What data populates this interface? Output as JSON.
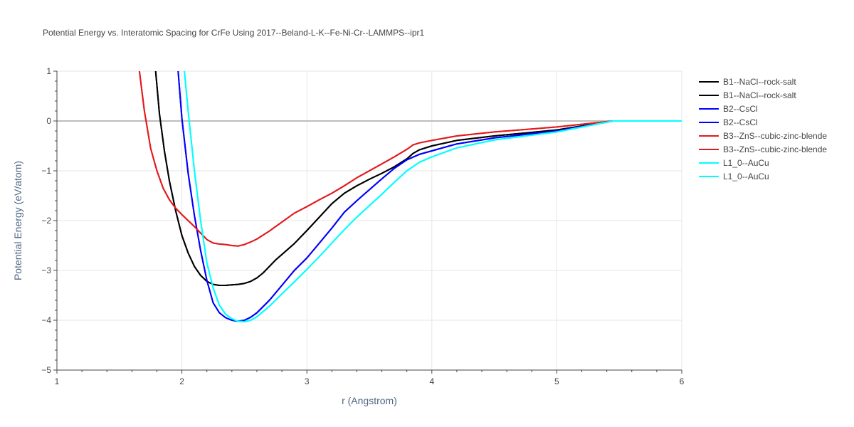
{
  "chart_data": {
    "type": "line",
    "title": "Potential Energy vs. Interatomic Spacing for CrFe Using 2017--Beland-L-K--Fe-Ni-Cr--LAMMPS--ipr1",
    "xlabel": "r (Angstrom)",
    "ylabel": "Potential Energy (eV/atom)",
    "xlim": [
      1,
      6
    ],
    "ylim": [
      -5,
      1
    ],
    "xticks": [
      "1",
      "2",
      "3",
      "4",
      "5",
      "6"
    ],
    "yticks": [
      "1",
      "0",
      "−1",
      "−2",
      "−3",
      "−4",
      "−5"
    ],
    "grid": true,
    "legend_position": "right",
    "series": [
      {
        "name": "B1--NaCl--rock-salt",
        "color": "#000000",
        "x": [
          1.79,
          1.82,
          1.86,
          1.9,
          1.95,
          2.0,
          2.05,
          2.1,
          2.15,
          2.2,
          2.25,
          2.3,
          2.35,
          2.4,
          2.45,
          2.5,
          2.55,
          2.6,
          2.65,
          2.7,
          2.75,
          2.8,
          2.9,
          3.0,
          3.1,
          3.2,
          3.3,
          3.4,
          3.5,
          3.6,
          3.7,
          3.8,
          3.85,
          3.9,
          4.0,
          4.2,
          4.5,
          5.0,
          5.45,
          5.6,
          6.0
        ],
        "y": [
          1.0,
          0.15,
          -0.6,
          -1.2,
          -1.8,
          -2.3,
          -2.65,
          -2.92,
          -3.1,
          -3.22,
          -3.28,
          -3.3,
          -3.3,
          -3.29,
          -3.28,
          -3.26,
          -3.22,
          -3.15,
          -3.05,
          -2.92,
          -2.79,
          -2.68,
          -2.46,
          -2.2,
          -1.93,
          -1.66,
          -1.45,
          -1.3,
          -1.17,
          -1.05,
          -0.92,
          -0.76,
          -0.65,
          -0.58,
          -0.5,
          -0.39,
          -0.3,
          -0.18,
          0.0,
          0.0,
          0.0
        ]
      },
      {
        "name": "B1--NaCl--rock-salt",
        "color": "#000000",
        "x": [
          1.79,
          1.82,
          1.86,
          1.9,
          1.95,
          2.0,
          2.05,
          2.1,
          2.15,
          2.2,
          2.25,
          2.3,
          2.35,
          2.4,
          2.45,
          2.5,
          2.55,
          2.6,
          2.65,
          2.7,
          2.75,
          2.8,
          2.9,
          3.0,
          3.1,
          3.2,
          3.3,
          3.4,
          3.5,
          3.6,
          3.7,
          3.8,
          3.85,
          3.9,
          4.0,
          4.2,
          4.5,
          5.0,
          5.45,
          5.6,
          6.0
        ],
        "y": [
          1.0,
          0.15,
          -0.6,
          -1.2,
          -1.8,
          -2.3,
          -2.65,
          -2.92,
          -3.1,
          -3.22,
          -3.28,
          -3.3,
          -3.3,
          -3.29,
          -3.28,
          -3.26,
          -3.22,
          -3.15,
          -3.05,
          -2.92,
          -2.79,
          -2.68,
          -2.46,
          -2.2,
          -1.93,
          -1.66,
          -1.45,
          -1.3,
          -1.17,
          -1.05,
          -0.92,
          -0.76,
          -0.65,
          -0.58,
          -0.5,
          -0.39,
          -0.3,
          -0.18,
          0.0,
          0.0,
          0.0
        ]
      },
      {
        "name": "B2--CsCl",
        "color": "#0000ff",
        "x": [
          1.97,
          2.0,
          2.05,
          2.1,
          2.15,
          2.2,
          2.25,
          2.3,
          2.35,
          2.4,
          2.45,
          2.5,
          2.55,
          2.6,
          2.7,
          2.8,
          2.9,
          3.0,
          3.1,
          3.2,
          3.3,
          3.4,
          3.5,
          3.6,
          3.7,
          3.8,
          3.9,
          4.0,
          4.2,
          4.5,
          5.0,
          5.45,
          5.6,
          6.0
        ],
        "y": [
          1.0,
          0.05,
          -1.05,
          -1.9,
          -2.6,
          -3.2,
          -3.65,
          -3.85,
          -3.95,
          -4.0,
          -4.02,
          -4.0,
          -3.94,
          -3.85,
          -3.6,
          -3.3,
          -3.0,
          -2.75,
          -2.45,
          -2.15,
          -1.83,
          -1.6,
          -1.38,
          -1.16,
          -0.95,
          -0.78,
          -0.67,
          -0.6,
          -0.46,
          -0.34,
          -0.2,
          0.0,
          0.0,
          0.0
        ]
      },
      {
        "name": "B2--CsCl",
        "color": "#0000ff",
        "x": [
          1.97,
          2.0,
          2.05,
          2.1,
          2.15,
          2.2,
          2.25,
          2.3,
          2.35,
          2.4,
          2.45,
          2.5,
          2.55,
          2.6,
          2.7,
          2.8,
          2.9,
          3.0,
          3.1,
          3.2,
          3.3,
          3.4,
          3.5,
          3.6,
          3.7,
          3.8,
          3.9,
          4.0,
          4.2,
          4.5,
          5.0,
          5.45,
          5.6,
          6.0
        ],
        "y": [
          1.0,
          0.05,
          -1.05,
          -1.9,
          -2.6,
          -3.2,
          -3.65,
          -3.85,
          -3.95,
          -4.0,
          -4.02,
          -4.0,
          -3.94,
          -3.85,
          -3.6,
          -3.3,
          -3.0,
          -2.75,
          -2.45,
          -2.15,
          -1.83,
          -1.6,
          -1.38,
          -1.16,
          -0.95,
          -0.78,
          -0.67,
          -0.6,
          -0.46,
          -0.34,
          -0.2,
          0.0,
          0.0,
          0.0
        ]
      },
      {
        "name": "B3--ZnS--cubic-zinc-blende",
        "color": "#e31a1c",
        "x": [
          1.66,
          1.7,
          1.75,
          1.8,
          1.85,
          1.9,
          1.95,
          2.0,
          2.05,
          2.1,
          2.15,
          2.2,
          2.25,
          2.3,
          2.35,
          2.4,
          2.45,
          2.5,
          2.55,
          2.6,
          2.7,
          2.8,
          2.9,
          3.0,
          3.1,
          3.2,
          3.3,
          3.4,
          3.5,
          3.6,
          3.7,
          3.8,
          3.85,
          3.9,
          4.0,
          4.2,
          4.5,
          5.0,
          5.45,
          5.6,
          6.0
        ],
        "y": [
          1.0,
          0.2,
          -0.55,
          -1.0,
          -1.35,
          -1.58,
          -1.75,
          -1.88,
          -2.0,
          -2.12,
          -2.25,
          -2.38,
          -2.45,
          -2.47,
          -2.48,
          -2.5,
          -2.51,
          -2.48,
          -2.43,
          -2.37,
          -2.21,
          -2.03,
          -1.85,
          -1.72,
          -1.58,
          -1.45,
          -1.3,
          -1.14,
          -1.0,
          -0.86,
          -0.72,
          -0.57,
          -0.48,
          -0.44,
          -0.39,
          -0.3,
          -0.22,
          -0.12,
          0.0,
          0.0,
          0.0
        ]
      },
      {
        "name": "B3--ZnS--cubic-zinc-blende",
        "color": "#e31a1c",
        "x": [
          1.66,
          1.7,
          1.75,
          1.8,
          1.85,
          1.9,
          1.95,
          2.0,
          2.05,
          2.1,
          2.15,
          2.2,
          2.25,
          2.3,
          2.35,
          2.4,
          2.45,
          2.5,
          2.55,
          2.6,
          2.7,
          2.8,
          2.9,
          3.0,
          3.1,
          3.2,
          3.3,
          3.4,
          3.5,
          3.6,
          3.7,
          3.8,
          3.85,
          3.9,
          4.0,
          4.2,
          4.5,
          5.0,
          5.45,
          5.6,
          6.0
        ],
        "y": [
          1.0,
          0.2,
          -0.55,
          -1.0,
          -1.35,
          -1.58,
          -1.75,
          -1.88,
          -2.0,
          -2.12,
          -2.25,
          -2.38,
          -2.45,
          -2.47,
          -2.48,
          -2.5,
          -2.51,
          -2.48,
          -2.43,
          -2.37,
          -2.21,
          -2.03,
          -1.85,
          -1.72,
          -1.58,
          -1.45,
          -1.3,
          -1.14,
          -1.0,
          -0.86,
          -0.72,
          -0.57,
          -0.48,
          -0.44,
          -0.39,
          -0.3,
          -0.22,
          -0.12,
          0.0,
          0.0,
          0.0
        ]
      },
      {
        "name": "L1_0--AuCu",
        "color": "#00ffff",
        "x": [
          2.02,
          2.05,
          2.1,
          2.15,
          2.2,
          2.25,
          2.3,
          2.35,
          2.4,
          2.45,
          2.5,
          2.55,
          2.6,
          2.7,
          2.8,
          2.9,
          3.0,
          3.1,
          3.2,
          3.3,
          3.4,
          3.5,
          3.6,
          3.7,
          3.8,
          3.9,
          4.0,
          4.2,
          4.5,
          5.0,
          5.45,
          5.6,
          6.0
        ],
        "y": [
          1.0,
          0.2,
          -1.0,
          -2.0,
          -2.85,
          -3.35,
          -3.7,
          -3.88,
          -3.97,
          -4.02,
          -4.03,
          -4.0,
          -3.93,
          -3.72,
          -3.47,
          -3.23,
          -2.98,
          -2.72,
          -2.45,
          -2.18,
          -1.93,
          -1.7,
          -1.47,
          -1.23,
          -1.0,
          -0.83,
          -0.72,
          -0.54,
          -0.38,
          -0.22,
          0.0,
          0.0,
          0.0
        ]
      },
      {
        "name": "L1_0--AuCu",
        "color": "#00ffff",
        "x": [
          2.02,
          2.05,
          2.1,
          2.15,
          2.2,
          2.25,
          2.3,
          2.35,
          2.4,
          2.45,
          2.5,
          2.55,
          2.6,
          2.7,
          2.8,
          2.9,
          3.0,
          3.1,
          3.2,
          3.3,
          3.4,
          3.5,
          3.6,
          3.7,
          3.8,
          3.9,
          4.0,
          4.2,
          4.5,
          5.0,
          5.45,
          5.6,
          6.0
        ],
        "y": [
          1.0,
          0.2,
          -1.0,
          -2.0,
          -2.85,
          -3.35,
          -3.7,
          -3.88,
          -3.97,
          -4.02,
          -4.03,
          -4.0,
          -3.93,
          -3.72,
          -3.47,
          -3.23,
          -2.98,
          -2.72,
          -2.45,
          -2.18,
          -1.93,
          -1.7,
          -1.47,
          -1.23,
          -1.0,
          -0.83,
          -0.72,
          -0.54,
          -0.38,
          -0.22,
          0.0,
          0.0,
          0.0
        ]
      }
    ]
  }
}
